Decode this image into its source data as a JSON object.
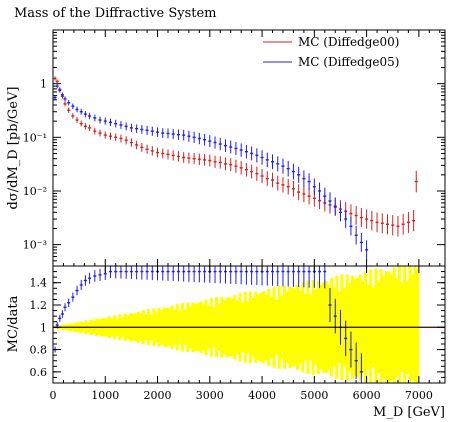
{
  "chart_data": [
    {
      "type": "scatter",
      "title": "Mass of the Diffractive System",
      "ylabel": "dσ/dM_D [pb/GeV]",
      "xlabel": "",
      "xlim": [
        0,
        7500
      ],
      "ylim": [
        0.0004,
        10
      ],
      "yscale": "log",
      "legend_position": "top-right",
      "yticks": [
        {
          "value": 0.001,
          "label": "10⁻³"
        },
        {
          "value": 0.01,
          "label": "10⁻²"
        },
        {
          "value": 0.1,
          "label": "10⁻¹"
        },
        {
          "value": 1,
          "label": "1"
        }
      ],
      "series": [
        {
          "name": "MC (Diffedge00)",
          "color": "#d42020",
          "points": [
            [
              40,
              1.25
            ],
            [
              80,
              1.1
            ],
            [
              130,
              0.78
            ],
            [
              180,
              0.58
            ],
            [
              230,
              0.42
            ],
            [
              300,
              0.32
            ],
            [
              380,
              0.25
            ],
            [
              460,
              0.21
            ],
            [
              540,
              0.18
            ],
            [
              620,
              0.16
            ],
            [
              700,
              0.15
            ],
            [
              800,
              0.13
            ],
            [
              900,
              0.12
            ],
            [
              1000,
              0.11
            ],
            [
              1100,
              0.105
            ],
            [
              1200,
              0.1
            ],
            [
              1300,
              0.095
            ],
            [
              1400,
              0.088
            ],
            [
              1500,
              0.08
            ],
            [
              1600,
              0.072
            ],
            [
              1700,
              0.065
            ],
            [
              1800,
              0.06
            ],
            [
              1900,
              0.056
            ],
            [
              2000,
              0.052
            ],
            [
              2100,
              0.05
            ],
            [
              2200,
              0.048
            ],
            [
              2300,
              0.046
            ],
            [
              2400,
              0.044
            ],
            [
              2500,
              0.042
            ],
            [
              2600,
              0.041
            ],
            [
              2700,
              0.04
            ],
            [
              2800,
              0.039
            ],
            [
              2900,
              0.038
            ],
            [
              3000,
              0.037
            ],
            [
              3100,
              0.035
            ],
            [
              3200,
              0.034
            ],
            [
              3300,
              0.032
            ],
            [
              3400,
              0.031
            ],
            [
              3500,
              0.029
            ],
            [
              3600,
              0.027
            ],
            [
              3700,
              0.025
            ],
            [
              3800,
              0.023
            ],
            [
              3900,
              0.021
            ],
            [
              4000,
              0.019
            ],
            [
              4100,
              0.017
            ],
            [
              4200,
              0.016
            ],
            [
              4300,
              0.014
            ],
            [
              4400,
              0.013
            ],
            [
              4500,
              0.012
            ],
            [
              4600,
              0.011
            ],
            [
              4700,
              0.0095
            ],
            [
              4800,
              0.0088
            ],
            [
              4900,
              0.008
            ],
            [
              5000,
              0.0073
            ],
            [
              5100,
              0.0066
            ],
            [
              5200,
              0.006
            ],
            [
              5300,
              0.0055
            ],
            [
              5400,
              0.005
            ],
            [
              5500,
              0.0046
            ],
            [
              5600,
              0.0042
            ],
            [
              5700,
              0.0038
            ],
            [
              5800,
              0.0035
            ],
            [
              5900,
              0.0032
            ],
            [
              6000,
              0.003
            ],
            [
              6100,
              0.0028
            ],
            [
              6200,
              0.0026
            ],
            [
              6300,
              0.0025
            ],
            [
              6400,
              0.0024
            ],
            [
              6500,
              0.0023
            ],
            [
              6600,
              0.0022
            ],
            [
              6700,
              0.0024
            ],
            [
              6800,
              0.0026
            ],
            [
              6900,
              0.0028
            ],
            [
              6950,
              0.015
            ]
          ]
        },
        {
          "name": "MC (Diffedge05)",
          "color": "#2020e0",
          "points": [
            [
              40,
              0.55
            ],
            [
              80,
              0.9
            ],
            [
              130,
              0.75
            ],
            [
              180,
              0.62
            ],
            [
              230,
              0.52
            ],
            [
              300,
              0.44
            ],
            [
              380,
              0.38
            ],
            [
              460,
              0.33
            ],
            [
              540,
              0.3
            ],
            [
              620,
              0.27
            ],
            [
              700,
              0.25
            ],
            [
              800,
              0.23
            ],
            [
              900,
              0.21
            ],
            [
              1000,
              0.2
            ],
            [
              1100,
              0.19
            ],
            [
              1200,
              0.18
            ],
            [
              1300,
              0.17
            ],
            [
              1400,
              0.16
            ],
            [
              1500,
              0.15
            ],
            [
              1600,
              0.145
            ],
            [
              1700,
              0.14
            ],
            [
              1800,
              0.135
            ],
            [
              1900,
              0.13
            ],
            [
              2000,
              0.125
            ],
            [
              2100,
              0.12
            ],
            [
              2200,
              0.118
            ],
            [
              2300,
              0.115
            ],
            [
              2400,
              0.112
            ],
            [
              2500,
              0.11
            ],
            [
              2600,
              0.105
            ],
            [
              2700,
              0.1
            ],
            [
              2800,
              0.095
            ],
            [
              2900,
              0.09
            ],
            [
              3000,
              0.085
            ],
            [
              3100,
              0.08
            ],
            [
              3200,
              0.075
            ],
            [
              3300,
              0.07
            ],
            [
              3400,
              0.066
            ],
            [
              3500,
              0.062
            ],
            [
              3600,
              0.058
            ],
            [
              3700,
              0.054
            ],
            [
              3800,
              0.05
            ],
            [
              3900,
              0.046
            ],
            [
              4000,
              0.042
            ],
            [
              4100,
              0.038
            ],
            [
              4200,
              0.035
            ],
            [
              4300,
              0.032
            ],
            [
              4400,
              0.029
            ],
            [
              4500,
              0.026
            ],
            [
              4600,
              0.023
            ],
            [
              4700,
              0.02
            ],
            [
              4800,
              0.017
            ],
            [
              4900,
              0.015
            ],
            [
              5000,
              0.012
            ],
            [
              5100,
              0.01
            ],
            [
              5200,
              0.008
            ],
            [
              5300,
              0.0065
            ],
            [
              5400,
              0.0052
            ],
            [
              5500,
              0.004
            ],
            [
              5600,
              0.003
            ],
            [
              5700,
              0.0022
            ],
            [
              5800,
              0.0015
            ],
            [
              5900,
              0.0011
            ],
            [
              6000,
              0.0008
            ]
          ]
        }
      ]
    },
    {
      "type": "scatter",
      "title": "",
      "ylabel": "MC/data",
      "xlabel": "M_D [GeV]",
      "xlim": [
        0,
        7500
      ],
      "ylim": [
        0.5,
        1.55
      ],
      "yticks": [
        {
          "value": 0.6,
          "label": "0.6"
        },
        {
          "value": 0.8,
          "label": "0.8"
        },
        {
          "value": 1,
          "label": "1"
        },
        {
          "value": 1.2,
          "label": "1.2"
        },
        {
          "value": 1.4,
          "label": "1.4"
        }
      ],
      "xticks": [
        {
          "value": 0,
          "label": "0"
        },
        {
          "value": 1000,
          "label": "1000"
        },
        {
          "value": 2000,
          "label": "2000"
        },
        {
          "value": 3000,
          "label": "3000"
        },
        {
          "value": 4000,
          "label": "4000"
        },
        {
          "value": 5000,
          "label": "5000"
        },
        {
          "value": 6000,
          "label": "6000"
        },
        {
          "value": 7000,
          "label": "7000"
        }
      ],
      "band": {
        "color": "#ffff00",
        "x_range": [
          0,
          7000
        ],
        "halfwidth_at_start": 0.01,
        "halfwidth_at_end": 0.5
      },
      "reference_line": 1,
      "series": [
        {
          "name": "MC (Diffedge00)",
          "color": "#d42020",
          "points": [
            [
              40,
              1
            ],
            [
              80,
              1
            ],
            [
              130,
              1
            ],
            [
              200,
              1
            ],
            [
              400,
              1
            ],
            [
              600,
              1
            ],
            [
              1000,
              1
            ],
            [
              2000,
              1
            ],
            [
              3000,
              1
            ],
            [
              4000,
              1
            ],
            [
              5000,
              1
            ],
            [
              6000,
              1
            ],
            [
              7000,
              1
            ],
            [
              7500,
              1
            ]
          ]
        },
        {
          "name": "MC (Diffedge05)",
          "color": "#2020e0",
          "points": [
            [
              40,
              0.8
            ],
            [
              80,
              1.02
            ],
            [
              130,
              1.08
            ],
            [
              180,
              1.12
            ],
            [
              230,
              1.18
            ],
            [
              300,
              1.22
            ],
            [
              380,
              1.27
            ],
            [
              460,
              1.33
            ],
            [
              540,
              1.38
            ],
            [
              620,
              1.42
            ],
            [
              700,
              1.44
            ],
            [
              800,
              1.46
            ],
            [
              900,
              1.47
            ],
            [
              1000,
              1.48
            ],
            [
              1100,
              1.5
            ],
            [
              1200,
              1.5
            ],
            [
              1300,
              1.5
            ],
            [
              1400,
              1.5
            ],
            [
              1500,
              1.5
            ],
            [
              1600,
              1.5
            ],
            [
              1700,
              1.5
            ],
            [
              1800,
              1.5
            ],
            [
              1900,
              1.5
            ],
            [
              2000,
              1.5
            ],
            [
              2100,
              1.5
            ],
            [
              2200,
              1.5
            ],
            [
              2300,
              1.5
            ],
            [
              2400,
              1.5
            ],
            [
              2500,
              1.5
            ],
            [
              2600,
              1.5
            ],
            [
              2700,
              1.5
            ],
            [
              2800,
              1.5
            ],
            [
              2900,
              1.5
            ],
            [
              3000,
              1.5
            ],
            [
              3100,
              1.5
            ],
            [
              3200,
              1.5
            ],
            [
              3300,
              1.5
            ],
            [
              3400,
              1.5
            ],
            [
              3500,
              1.5
            ],
            [
              3600,
              1.5
            ],
            [
              3700,
              1.5
            ],
            [
              3800,
              1.5
            ],
            [
              3900,
              1.5
            ],
            [
              4000,
              1.5
            ],
            [
              4100,
              1.5
            ],
            [
              4200,
              1.5
            ],
            [
              4300,
              1.5
            ],
            [
              4400,
              1.5
            ],
            [
              4500,
              1.5
            ],
            [
              4600,
              1.5
            ],
            [
              4700,
              1.5
            ],
            [
              4800,
              1.5
            ],
            [
              4900,
              1.5
            ],
            [
              5000,
              1.5
            ],
            [
              5100,
              1.5
            ],
            [
              5200,
              1.5
            ],
            [
              5300,
              1.2
            ],
            [
              5400,
              1.1
            ],
            [
              5500,
              1.0
            ],
            [
              5600,
              0.9
            ],
            [
              5700,
              0.8
            ],
            [
              5800,
              0.7
            ],
            [
              5900,
              0.6
            ]
          ]
        }
      ]
    }
  ]
}
